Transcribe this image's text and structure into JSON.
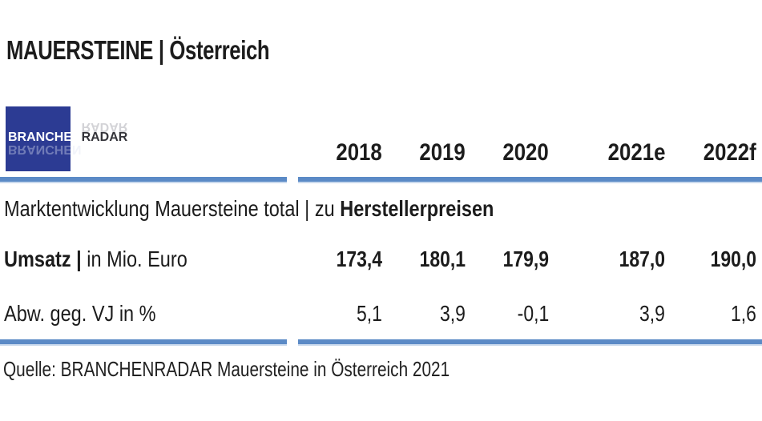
{
  "page": {
    "title": "MAUERSTEINE | Österreich",
    "source": "Quelle: BRANCHENRADAR Mauersteine in Österreich 2021"
  },
  "logo": {
    "part1": "BRANCHEN",
    "part2": "RADAR"
  },
  "colors": {
    "accent_blue": "#5b8ac6",
    "accent_blue_light": "#c9d9ed",
    "logo_blue": "#2c3b93",
    "text": "#1c1c1c"
  },
  "table": {
    "columns": [
      "2018",
      "2019",
      "2020",
      "2021e",
      "2022f"
    ],
    "section_title_regular": "Marktentwicklung Mauersteine total | zu ",
    "section_title_bold": "Herstellerpreisen",
    "rows": [
      {
        "label_bold": "Umsatz | ",
        "label_rest": "in Mio. Euro",
        "values": [
          "173,4",
          "180,1",
          "179,9",
          "187,0",
          "190,0"
        ]
      },
      {
        "label_bold": "",
        "label_rest": "Abw. geg. VJ in %",
        "values": [
          "5,1",
          "3,9",
          "-0,1",
          "3,9",
          "1,6"
        ]
      }
    ]
  },
  "chart_data": {
    "type": "table",
    "title": "MAUERSTEINE | Österreich",
    "subtitle": "Marktentwicklung Mauersteine total | zu Herstellerpreisen",
    "categories": [
      "2018",
      "2019",
      "2020",
      "2021e",
      "2022f"
    ],
    "series": [
      {
        "name": "Umsatz | in Mio. Euro",
        "values": [
          173.4,
          180.1,
          179.9,
          187.0,
          190.0
        ]
      },
      {
        "name": "Abw. geg. VJ in %",
        "values": [
          5.1,
          3.9,
          -0.1,
          3.9,
          1.6
        ]
      }
    ],
    "source": "Quelle: BRANCHENRADAR Mauersteine in Österreich 2021"
  }
}
